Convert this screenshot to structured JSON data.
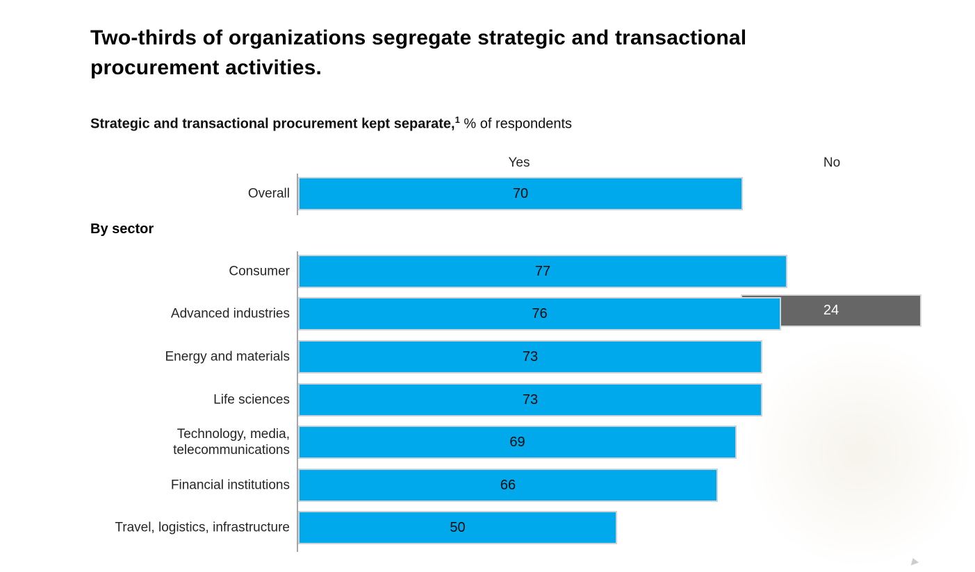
{
  "page": {
    "title": "Two-thirds of organizations segregate strategic and transactional\nprocurement activities.",
    "subtitle": {
      "bold": "Strategic and transactional procurement kept separate,",
      "superscript": "1",
      "regular": " % of respondents"
    }
  },
  "chart_data": {
    "type": "bar",
    "orientation": "horizontal",
    "title": "Two-thirds of organizations segregate strategic and transactional procurement activities.",
    "subtitle": "Strategic and transactional procurement kept separate, % of respondents",
    "columns": [
      "Yes",
      "No"
    ],
    "xlim": [
      0,
      100
    ],
    "group_label": "By sector",
    "overall": {
      "label": "Overall",
      "yes": 70,
      "no": null
    },
    "sectors": [
      {
        "label": "Consumer",
        "yes": 77,
        "no": null
      },
      {
        "label": "Advanced industries",
        "yes": 76,
        "no": 24
      },
      {
        "label": "Energy and materials",
        "yes": 73,
        "no": null
      },
      {
        "label": "Life sciences",
        "yes": 73,
        "no": null
      },
      {
        "label": "Technology, media,\ntelecommunications",
        "yes": 69,
        "no": null
      },
      {
        "label": "Financial institutions",
        "yes": 66,
        "no": null
      },
      {
        "label": "Travel, logistics, infrastructure",
        "yes": 50,
        "no": null
      }
    ],
    "colors": {
      "yes_bar": "#00a8ec",
      "no_bar": "#666666",
      "yes_value_text": "#0a0a0a",
      "no_value_text": "#ffffff"
    }
  }
}
